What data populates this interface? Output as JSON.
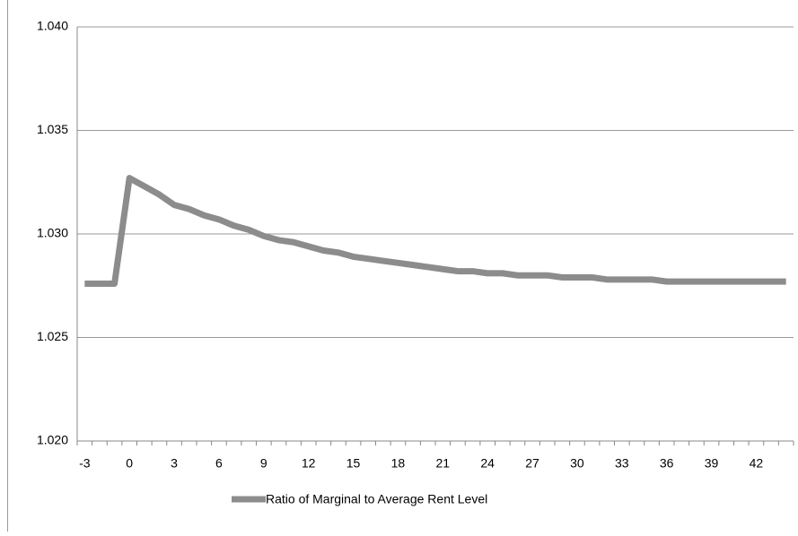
{
  "chart_data": {
    "type": "line",
    "categories": [
      -3,
      null,
      null,
      0,
      null,
      null,
      3,
      null,
      null,
      6,
      null,
      null,
      9,
      null,
      null,
      12,
      null,
      null,
      15,
      null,
      null,
      18,
      null,
      null,
      21,
      null,
      null,
      24,
      null,
      null,
      27,
      null,
      null,
      30,
      null,
      null,
      33,
      null,
      null,
      36,
      null,
      null,
      39,
      null,
      null,
      42,
      null,
      null
    ],
    "series": [
      {
        "name": "Ratio of Marginal to Average Rent Level",
        "color": "#8c8c8c",
        "values": [
          1.0276,
          1.0276,
          1.0276,
          1.0327,
          1.0323,
          1.0319,
          1.0314,
          1.0312,
          1.0309,
          1.0307,
          1.0304,
          1.0302,
          1.0299,
          1.0297,
          1.0296,
          1.0294,
          1.0292,
          1.0291,
          1.0289,
          1.0288,
          1.0287,
          1.0286,
          1.0285,
          1.0284,
          1.0283,
          1.0282,
          1.0282,
          1.0281,
          1.0281,
          1.028,
          1.028,
          1.028,
          1.0279,
          1.0279,
          1.0279,
          1.0278,
          1.0278,
          1.0278,
          1.0278,
          1.0277,
          1.0277,
          1.0277,
          1.0277,
          1.0277,
          1.0277,
          1.0277,
          1.0277,
          1.0277
        ]
      }
    ],
    "ylim": [
      1.02,
      1.04
    ],
    "yticks": [
      {
        "value": 1.02,
        "label": "1.020"
      },
      {
        "value": 1.025,
        "label": "1.025"
      },
      {
        "value": 1.03,
        "label": "1.030"
      },
      {
        "value": 1.035,
        "label": "1.035"
      },
      {
        "value": 1.04,
        "label": "1.040"
      }
    ],
    "grid": true,
    "legend": "bottom"
  }
}
